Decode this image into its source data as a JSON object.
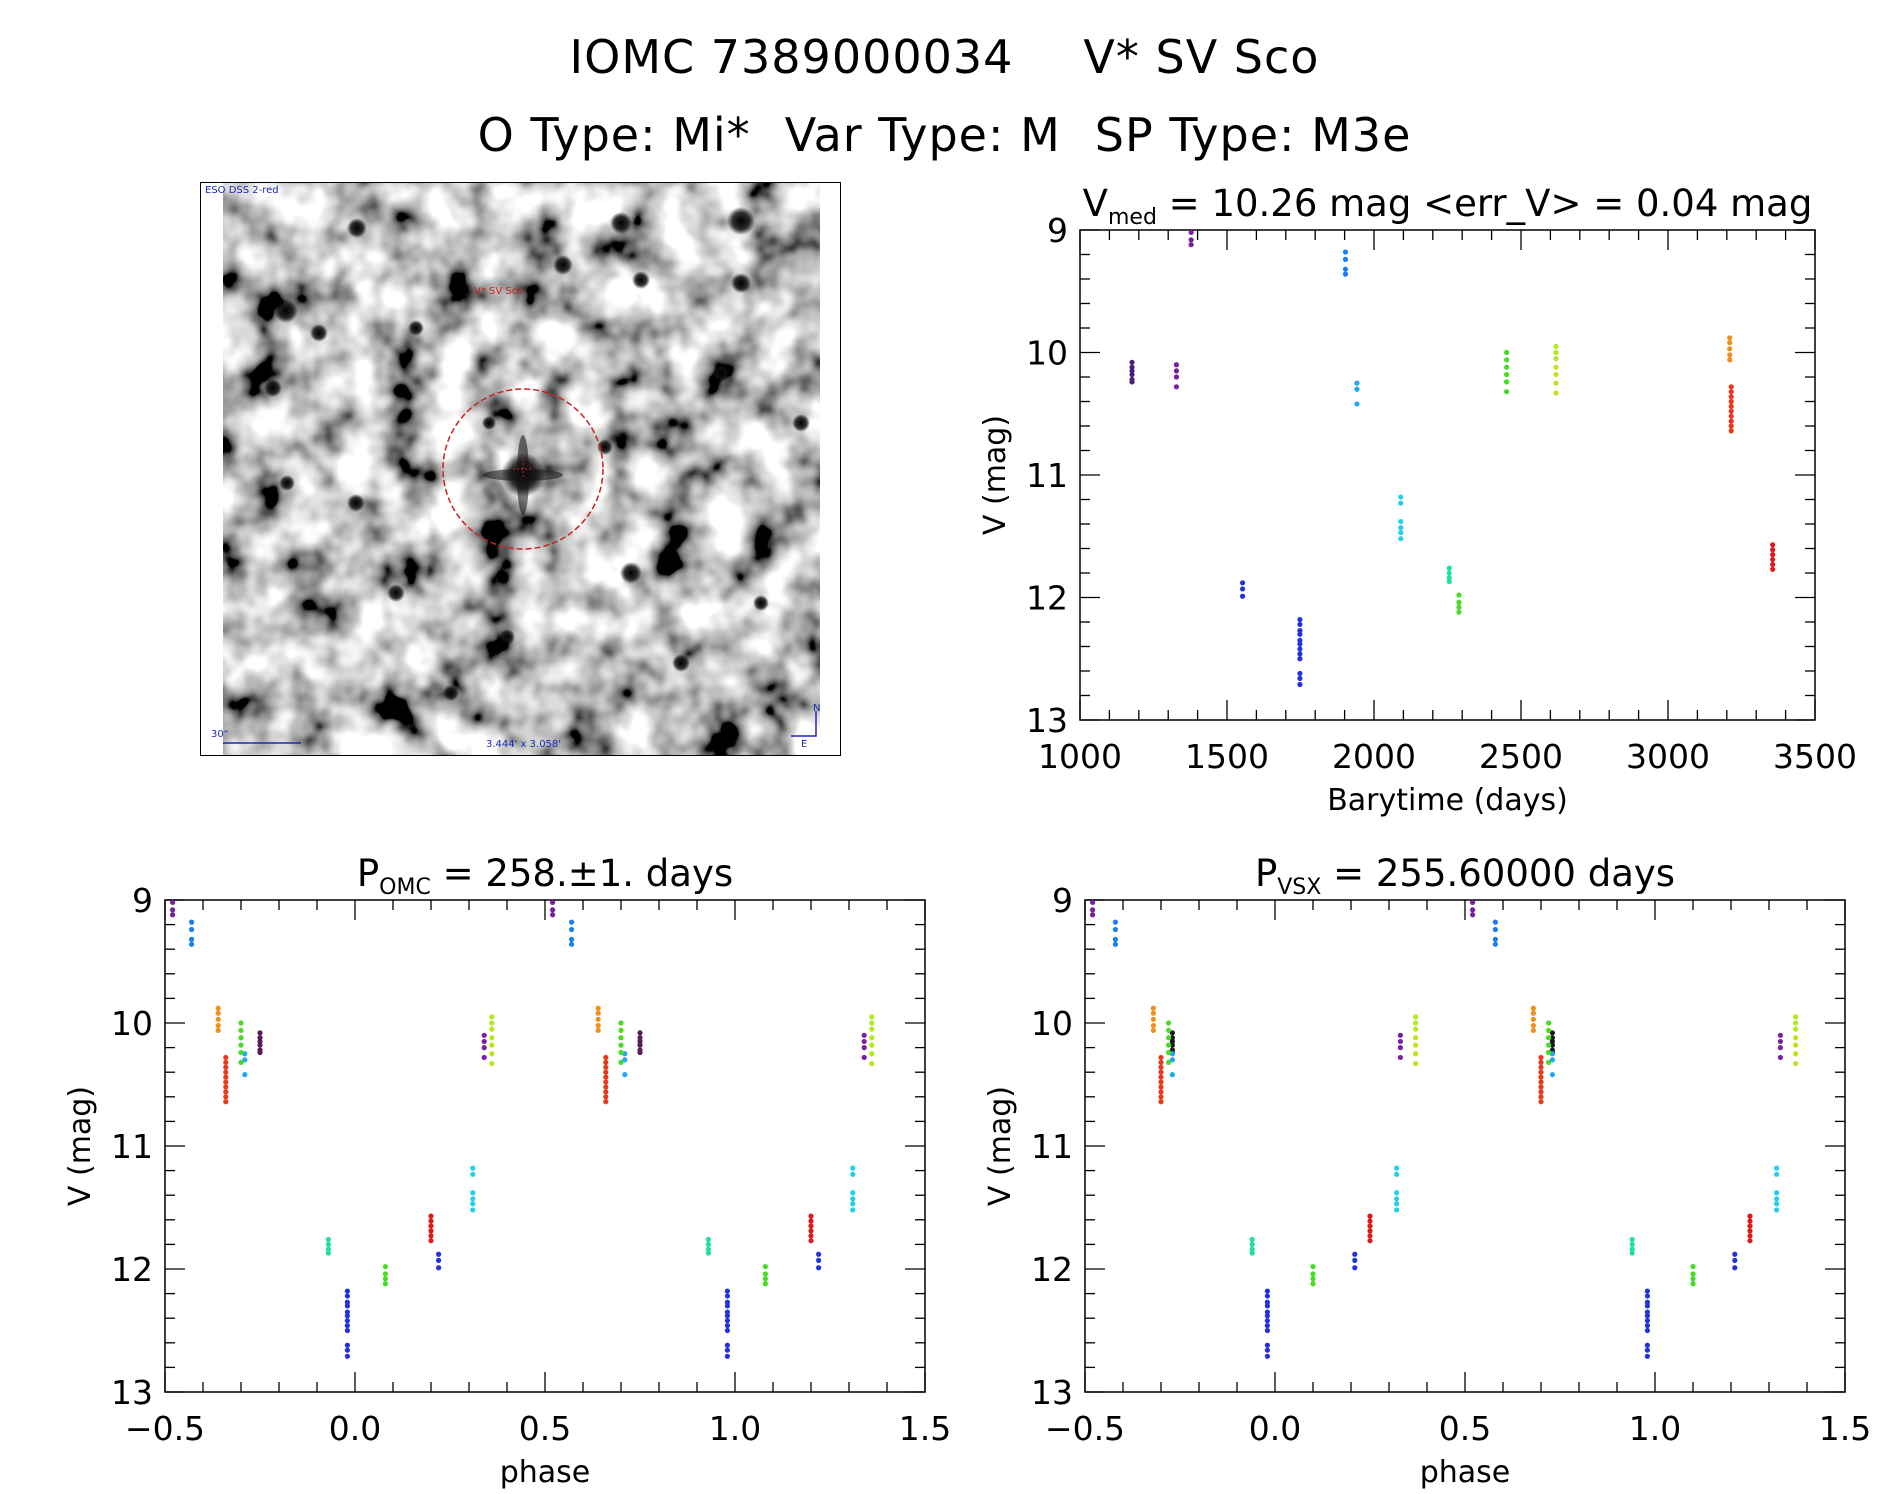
{
  "header": {
    "object_id": "IOMC 7389000034",
    "object_name": "V* SV Sco",
    "otype": "O Type: Mi*",
    "vartype": "Var Type: M",
    "sptype": "SP Type: M3e"
  },
  "stamp": {
    "survey": "ESO DSS 2-red",
    "target_label": "V* SV Sco",
    "scale_label": "30\"",
    "fov_label": "3.444' x 3.058'",
    "north": "N",
    "east": "E"
  },
  "colors": {
    "violet": "#7a1fa0",
    "indigo": "#4a1d78",
    "dark": "#5a1a5a",
    "black": "#1a1a1a",
    "blue": "#2233dd",
    "midblue": "#1a4ec8",
    "skyblue": "#1a7ef0",
    "lightblue": "#20a8f0",
    "cyan": "#22d0e8",
    "mint": "#20e0a0",
    "green": "#44dd22",
    "lime": "#22dd22",
    "yellowgreen": "#b8e620",
    "yellow": "#e0e020",
    "orange": "#f0901a",
    "red": "#e83a1a",
    "crimson": "#e01818"
  },
  "chart_data": [
    {
      "type": "scatter",
      "id": "lightcurve",
      "title_main": "V",
      "title_sub": "med",
      "title_rest": " = 10.26 mag <err_V> = 0.04 mag",
      "xlabel": "Barytime (days)",
      "ylabel": "V (mag)",
      "xlim": [
        1000,
        3500
      ],
      "ylim": [
        13,
        9
      ],
      "xticks": [
        1000,
        1500,
        2000,
        2500,
        3000,
        3500
      ],
      "xticklabels": [
        "1000",
        "1500",
        "2000",
        "2500",
        "3000",
        "3500"
      ],
      "yticks": [
        9,
        10,
        11,
        12,
        13
      ],
      "yticklabels": [
        "9",
        "10",
        "11",
        "12",
        "13"
      ],
      "series": [
        {
          "name": "epoch1",
          "color": "indigo",
          "x": 1177,
          "y": [
            10.08,
            10.12,
            10.15,
            10.18,
            10.22,
            10.24
          ]
        },
        {
          "name": "epoch2",
          "color": "violet",
          "x": 1328,
          "y": [
            10.1,
            10.15,
            10.2,
            10.28
          ]
        },
        {
          "name": "epoch3",
          "color": "violet",
          "x": 1378,
          "y": [
            9.02,
            9.08,
            9.12
          ]
        },
        {
          "name": "epoch4",
          "color": "blue",
          "x": 1553,
          "y": [
            11.88,
            11.93,
            11.99
          ]
        },
        {
          "name": "epoch5",
          "color": "blue",
          "x": 1748,
          "y": [
            12.18,
            12.22,
            12.27,
            12.3,
            12.35,
            12.38,
            12.42,
            12.46,
            12.5,
            12.62,
            12.66,
            12.71
          ]
        },
        {
          "name": "epoch6",
          "color": "skyblue",
          "x": 1903,
          "y": [
            9.18,
            9.24,
            9.32,
            9.36
          ]
        },
        {
          "name": "epoch7",
          "color": "lightblue",
          "x": 1942,
          "y": [
            10.25,
            10.3,
            10.42
          ]
        },
        {
          "name": "epoch8",
          "color": "cyan",
          "x": 2091,
          "y": [
            11.18,
            11.23,
            11.38,
            11.43,
            11.47,
            11.52
          ]
        },
        {
          "name": "epoch9",
          "color": "mint",
          "x": 2256,
          "y": [
            11.76,
            11.8,
            11.84,
            11.87
          ]
        },
        {
          "name": "epoch10",
          "color": "green",
          "x": 2289,
          "y": [
            11.98,
            12.04,
            12.08,
            12.12
          ]
        },
        {
          "name": "epoch11",
          "color": "green",
          "x": 2451,
          "y": [
            10.0,
            10.06,
            10.12,
            10.18,
            10.24,
            10.32
          ]
        },
        {
          "name": "epoch12",
          "color": "yellowgreen",
          "x": 2619,
          "y": [
            9.95,
            10.0,
            10.05,
            10.12,
            10.18,
            10.25,
            10.33
          ]
        },
        {
          "name": "epoch13",
          "color": "orange",
          "x": 3210,
          "y": [
            9.88,
            9.92,
            9.97,
            10.02,
            10.06
          ]
        },
        {
          "name": "epoch14",
          "color": "red",
          "x": 3215,
          "y": [
            10.28,
            10.32,
            10.36,
            10.4,
            10.44,
            10.48,
            10.52,
            10.56,
            10.6,
            10.64
          ]
        },
        {
          "name": "epoch15",
          "color": "crimson",
          "x": 3356,
          "y": [
            11.57,
            11.61,
            11.65,
            11.69,
            11.73,
            11.77
          ]
        }
      ]
    },
    {
      "type": "scatter",
      "id": "phase_omc",
      "title_main": "P",
      "title_sub": "OMC",
      "title_rest": " = 258.±1. days",
      "xlabel": "phase",
      "ylabel": "V (mag)",
      "xlim": [
        -0.5,
        1.5
      ],
      "ylim": [
        13,
        9
      ],
      "xticks": [
        -0.5,
        0.0,
        0.5,
        1.0,
        1.5
      ],
      "xticklabels": [
        "−0.5",
        "0.0",
        "0.5",
        "1.0",
        "1.5"
      ],
      "yticks": [
        9,
        10,
        11,
        12,
        13
      ],
      "yticklabels": [
        "9",
        "10",
        "11",
        "12",
        "13"
      ],
      "series": [
        {
          "name": "epoch1",
          "color": "dark",
          "x": -0.25,
          "y": [
            10.08,
            10.12,
            10.15,
            10.18,
            10.22,
            10.24
          ]
        },
        {
          "name": "epoch2",
          "color": "violet",
          "x": 0.34,
          "y": [
            10.1,
            10.15,
            10.2,
            10.28
          ]
        },
        {
          "name": "epoch3",
          "color": "violet",
          "x": -0.48,
          "y": [
            9.02,
            9.08,
            9.12
          ]
        },
        {
          "name": "epoch4",
          "color": "blue",
          "x": 0.22,
          "y": [
            11.88,
            11.93,
            11.99
          ]
        },
        {
          "name": "epoch5",
          "color": "blue",
          "x": -0.02,
          "y": [
            12.18,
            12.22,
            12.27,
            12.3,
            12.35,
            12.38,
            12.42,
            12.46,
            12.5,
            12.62,
            12.66,
            12.71
          ]
        },
        {
          "name": "epoch6",
          "color": "skyblue",
          "x": -0.43,
          "y": [
            9.18,
            9.24,
            9.32,
            9.36
          ]
        },
        {
          "name": "epoch7",
          "color": "lightblue",
          "x": -0.29,
          "y": [
            10.25,
            10.3,
            10.42
          ]
        },
        {
          "name": "epoch8",
          "color": "cyan",
          "x": 0.31,
          "y": [
            11.18,
            11.23,
            11.38,
            11.43,
            11.47,
            11.52
          ]
        },
        {
          "name": "epoch9",
          "color": "mint",
          "x": -0.07,
          "y": [
            11.76,
            11.8,
            11.84,
            11.87
          ]
        },
        {
          "name": "epoch10",
          "color": "green",
          "x": 0.08,
          "y": [
            11.98,
            12.04,
            12.08,
            12.12
          ]
        },
        {
          "name": "epoch11",
          "color": "green",
          "x": -0.3,
          "y": [
            10.0,
            10.06,
            10.12,
            10.18,
            10.24,
            10.32
          ]
        },
        {
          "name": "epoch12",
          "color": "yellowgreen",
          "x": 0.36,
          "y": [
            9.95,
            10.0,
            10.05,
            10.12,
            10.18,
            10.25,
            10.33
          ]
        },
        {
          "name": "epoch13",
          "color": "orange",
          "x": -0.36,
          "y": [
            9.88,
            9.92,
            9.97,
            10.02,
            10.06
          ]
        },
        {
          "name": "epoch14",
          "color": "red",
          "x": -0.34,
          "y": [
            10.28,
            10.32,
            10.36,
            10.4,
            10.44,
            10.48,
            10.52,
            10.56,
            10.6,
            10.64
          ]
        },
        {
          "name": "epoch15",
          "color": "crimson",
          "x": 0.2,
          "y": [
            11.57,
            11.61,
            11.65,
            11.69,
            11.73,
            11.77
          ]
        }
      ]
    },
    {
      "type": "scatter",
      "id": "phase_vsx",
      "title_main": "P",
      "title_sub": "VSX",
      "title_rest": " = 255.60000 days",
      "xlabel": "phase",
      "ylabel": "V (mag)",
      "xlim": [
        -0.5,
        1.5
      ],
      "ylim": [
        13,
        9
      ],
      "xticks": [
        -0.5,
        0.0,
        0.5,
        1.0,
        1.5
      ],
      "xticklabels": [
        "−0.5",
        "0.0",
        "0.5",
        "1.0",
        "1.5"
      ],
      "yticks": [
        9,
        10,
        11,
        12,
        13
      ],
      "yticklabels": [
        "9",
        "10",
        "11",
        "12",
        "13"
      ],
      "series": [
        {
          "name": "epoch1",
          "color": "black",
          "x": -0.27,
          "y": [
            10.08,
            10.12,
            10.15,
            10.18,
            10.22,
            10.24
          ]
        },
        {
          "name": "epoch2",
          "color": "violet",
          "x": 0.33,
          "y": [
            10.1,
            10.15,
            10.2,
            10.28
          ]
        },
        {
          "name": "epoch3",
          "color": "violet",
          "x": -0.48,
          "y": [
            9.02,
            9.08,
            9.12
          ]
        },
        {
          "name": "epoch4",
          "color": "blue",
          "x": 0.21,
          "y": [
            11.88,
            11.93,
            11.99
          ]
        },
        {
          "name": "epoch5",
          "color": "blue",
          "x": -0.02,
          "y": [
            12.18,
            12.22,
            12.27,
            12.3,
            12.35,
            12.38,
            12.42,
            12.46,
            12.5,
            12.62,
            12.66,
            12.71
          ]
        },
        {
          "name": "epoch6",
          "color": "skyblue",
          "x": -0.42,
          "y": [
            9.18,
            9.24,
            9.32,
            9.36
          ]
        },
        {
          "name": "epoch7",
          "color": "lightblue",
          "x": -0.27,
          "y": [
            10.25,
            10.3,
            10.42
          ]
        },
        {
          "name": "epoch8",
          "color": "cyan",
          "x": 0.32,
          "y": [
            11.18,
            11.23,
            11.38,
            11.43,
            11.47,
            11.52
          ]
        },
        {
          "name": "epoch9",
          "color": "mint",
          "x": -0.06,
          "y": [
            11.76,
            11.8,
            11.84,
            11.87
          ]
        },
        {
          "name": "epoch10",
          "color": "green",
          "x": 0.1,
          "y": [
            11.98,
            12.04,
            12.08,
            12.12
          ]
        },
        {
          "name": "epoch11",
          "color": "green",
          "x": -0.28,
          "y": [
            10.0,
            10.06,
            10.12,
            10.18,
            10.24,
            10.32
          ]
        },
        {
          "name": "epoch12",
          "color": "yellowgreen",
          "x": 0.37,
          "y": [
            9.95,
            10.0,
            10.05,
            10.12,
            10.18,
            10.25,
            10.33
          ]
        },
        {
          "name": "epoch13",
          "color": "orange",
          "x": -0.32,
          "y": [
            9.88,
            9.92,
            9.97,
            10.02,
            10.06
          ]
        },
        {
          "name": "epoch14",
          "color": "red",
          "x": -0.3,
          "y": [
            10.28,
            10.32,
            10.36,
            10.4,
            10.44,
            10.48,
            10.52,
            10.56,
            10.6,
            10.64
          ]
        },
        {
          "name": "epoch15",
          "color": "crimson",
          "x": 0.25,
          "y": [
            11.57,
            11.61,
            11.65,
            11.69,
            11.73,
            11.77
          ]
        }
      ]
    }
  ]
}
